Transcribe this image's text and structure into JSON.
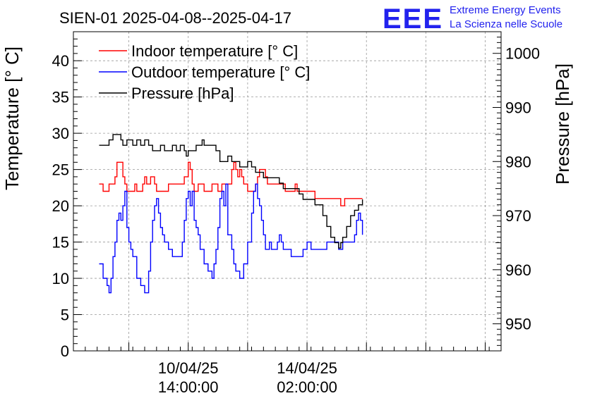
{
  "chart_data": {
    "type": "line",
    "title": "SIEN-01 2025-04-08--2025-04-17",
    "logo": {
      "text": "EEE",
      "line1": "Extreme Energy Events",
      "line2": "La Scienza nelle Scuole"
    },
    "ylabel_left": "Temperature [° C]",
    "ylabel_right": "Pressure [hPa]",
    "ylim_left": [
      0,
      44
    ],
    "ylim_right": [
      945,
      1004
    ],
    "xlim_hours": [
      0,
      216
    ],
    "left_ticks": [
      "0",
      "5",
      "10",
      "15",
      "20",
      "25",
      "30",
      "35",
      "40"
    ],
    "right_ticks": [
      "950",
      "960",
      "970",
      "980",
      "990",
      "1000"
    ],
    "x_tick_labels": [
      {
        "hour": 58,
        "date": "10/04/25",
        "time": "14:00:00"
      },
      {
        "hour": 118,
        "date": "14/04/25",
        "time": "02:00:00"
      }
    ],
    "grid": true,
    "legend_position": "top-left",
    "series": [
      {
        "name": "Indoor temperature [° C]",
        "color": "#ff0000",
        "axis": "left",
        "x": [
          13,
          15,
          16,
          18,
          19,
          21,
          22,
          24,
          25,
          26,
          27,
          28,
          30,
          31,
          32,
          34,
          35,
          36,
          37,
          38,
          39,
          40,
          41,
          42,
          44,
          47,
          48,
          50,
          55,
          56,
          58,
          59,
          60,
          61,
          62,
          63,
          65,
          66,
          69,
          70,
          72,
          73,
          74,
          75,
          77,
          80,
          81,
          82,
          83,
          84,
          85,
          86,
          88,
          92,
          93,
          94,
          96,
          97,
          98,
          99,
          100,
          103,
          106,
          107,
          109,
          112,
          113,
          115,
          122,
          125,
          130,
          132,
          134,
          135,
          137,
          140,
          145,
          146
        ],
        "values": [
          23,
          22,
          22,
          23,
          23,
          24,
          26,
          26,
          24,
          23,
          22,
          22,
          22,
          23,
          22,
          22,
          23,
          24,
          23,
          23,
          24,
          24,
          23,
          22,
          22,
          22,
          23,
          23,
          23,
          24,
          26,
          25,
          23,
          22,
          22,
          23,
          23,
          22,
          22,
          23,
          23,
          22,
          22,
          23,
          23,
          25,
          26,
          25,
          24,
          25,
          24,
          23,
          22,
          23,
          24,
          25,
          25,
          24,
          23,
          23,
          23,
          23,
          23,
          22,
          22,
          23,
          22,
          22,
          21,
          21,
          21,
          21,
          21,
          20,
          21,
          21,
          21,
          21
        ]
      },
      {
        "name": "Outdoor temperature [° C]",
        "color": "#0000ff",
        "axis": "left",
        "x": [
          13,
          15,
          17,
          18,
          19,
          20,
          21,
          22,
          23,
          24,
          25,
          26,
          27,
          28,
          29,
          30,
          32,
          34,
          36,
          38,
          39,
          40,
          41,
          42,
          43,
          44,
          45,
          46,
          47,
          48,
          50,
          52,
          54,
          55,
          56,
          57,
          58,
          59,
          60,
          61,
          62,
          63,
          64,
          66,
          68,
          70,
          71,
          72,
          73,
          74,
          75,
          76,
          77,
          78,
          80,
          81,
          82,
          84,
          86,
          88,
          90,
          91,
          92,
          93,
          94,
          95,
          96,
          97,
          98,
          99,
          100,
          102,
          103,
          104,
          105,
          106,
          110,
          112,
          114,
          115,
          116,
          118,
          120,
          122,
          124,
          125,
          126,
          128,
          130,
          132,
          134,
          136,
          138,
          140,
          142,
          143,
          144,
          145,
          146
        ],
        "values": [
          12,
          10,
          9,
          8,
          10,
          13,
          15,
          18,
          19,
          18,
          20,
          22,
          17,
          15,
          14,
          13,
          10,
          9,
          8,
          11,
          15,
          18,
          20,
          21,
          19,
          17,
          16,
          15,
          15,
          14,
          13,
          13,
          13,
          15,
          18,
          21,
          22,
          20,
          22,
          18,
          17,
          16,
          14,
          12,
          11,
          10,
          12,
          14,
          17,
          21,
          22,
          20,
          23,
          16,
          14,
          12,
          11,
          10,
          12,
          15,
          19,
          22,
          23,
          21,
          20,
          18,
          16,
          14,
          14,
          15,
          14,
          14,
          15,
          16,
          15,
          14,
          13,
          13,
          13,
          13,
          14,
          15,
          14,
          14,
          14,
          14,
          14,
          15,
          15,
          15,
          14,
          15,
          15,
          15,
          16,
          18,
          19,
          18,
          16
        ]
      },
      {
        "name": "Pressure [hPa]",
        "color": "#000000",
        "axis": "right",
        "x": [
          13,
          16,
          18,
          19,
          20,
          21,
          22,
          24,
          25,
          26,
          27,
          28,
          30,
          32,
          34,
          35,
          36,
          38,
          40,
          42,
          44,
          46,
          48,
          50,
          52,
          54,
          56,
          57,
          58,
          60,
          62,
          64,
          65,
          66,
          68,
          70,
          72,
          74,
          76,
          78,
          80,
          82,
          84,
          86,
          88,
          90,
          92,
          94,
          96,
          98,
          100,
          102,
          104,
          106,
          108,
          110,
          112,
          114,
          116,
          118,
          120,
          122,
          124,
          126,
          128,
          130,
          132,
          134,
          135,
          136,
          138,
          140,
          142,
          144,
          146
        ],
        "values": [
          983,
          983,
          984,
          984,
          985,
          985,
          985,
          984,
          983,
          983,
          984,
          984,
          983,
          984,
          983,
          983,
          984,
          983,
          982,
          982,
          983,
          982,
          982,
          983,
          982,
          983,
          982,
          981,
          982,
          982,
          983,
          983,
          984,
          983,
          983,
          983,
          982,
          980,
          980,
          981,
          980,
          980,
          979,
          979,
          980,
          979,
          978,
          978,
          977,
          977,
          977,
          977,
          976,
          975,
          975,
          975,
          975,
          974,
          973,
          973,
          973,
          972,
          972,
          970,
          968,
          966,
          965,
          964,
          965,
          966,
          968,
          970,
          971,
          972,
          973
        ]
      }
    ]
  }
}
